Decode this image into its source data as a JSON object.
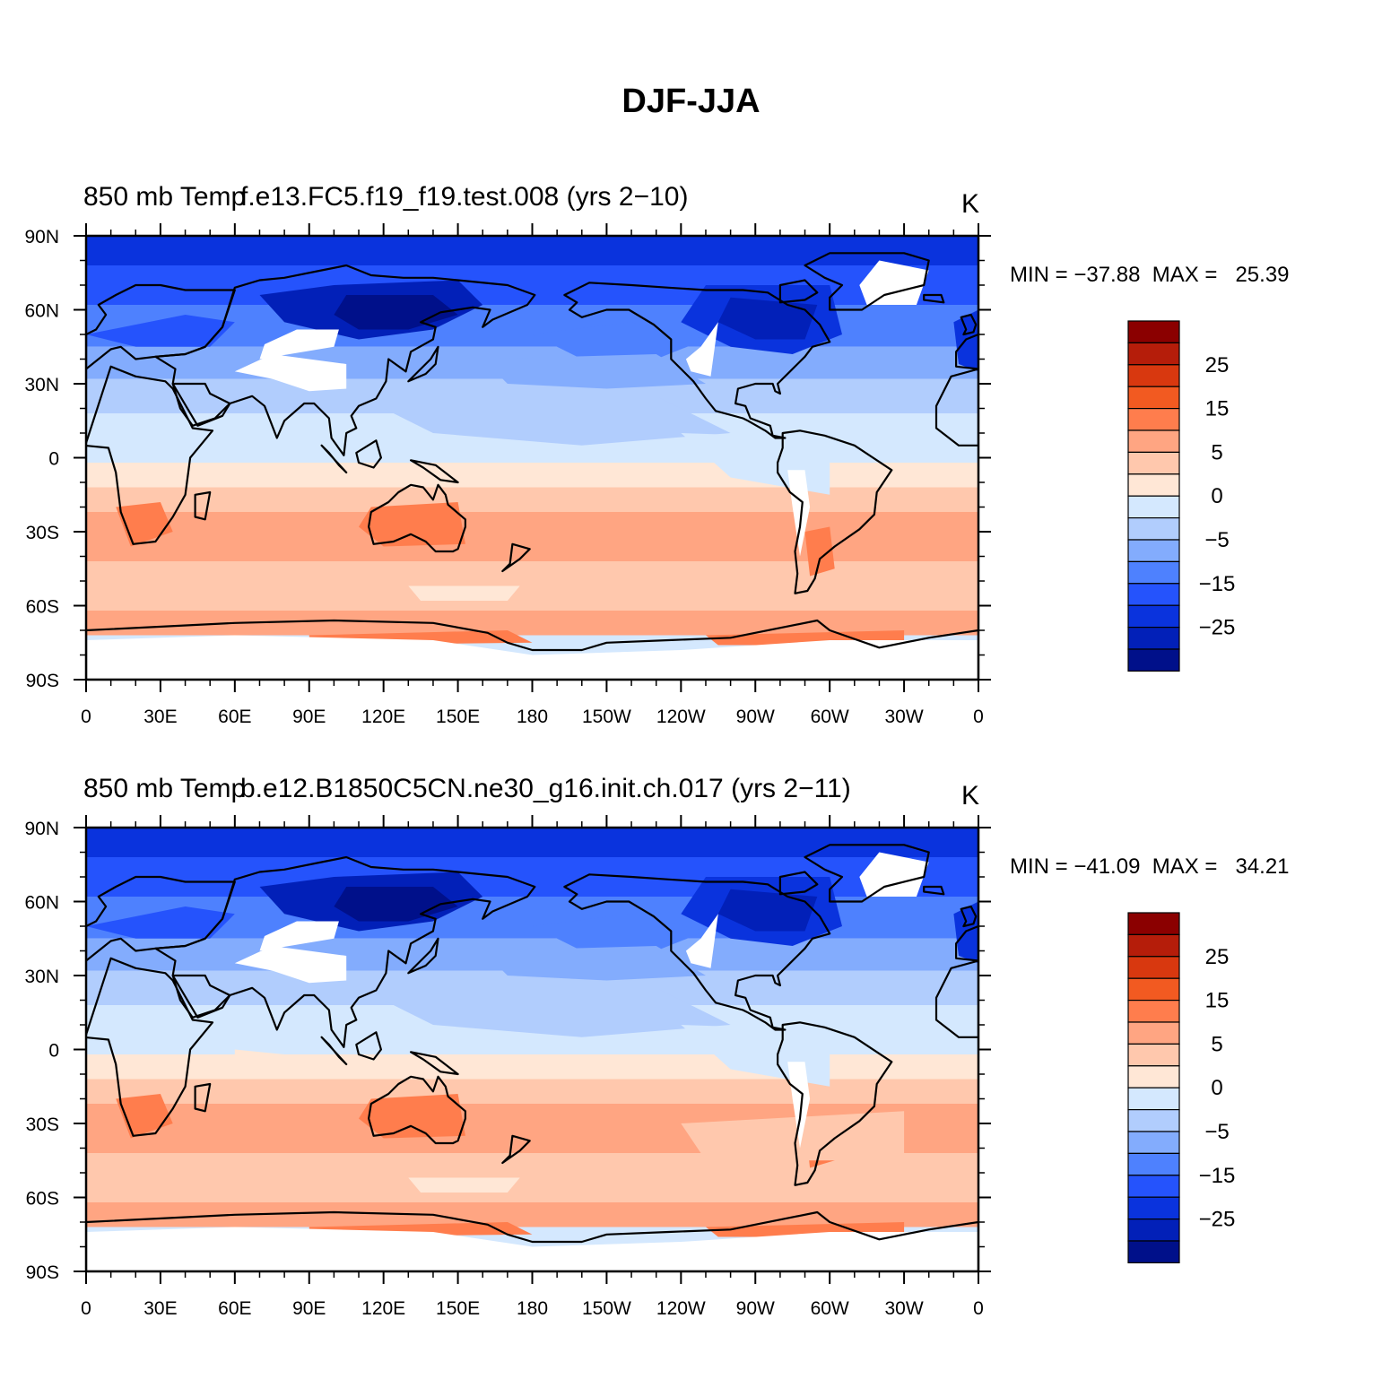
{
  "title": "DJF-JJA",
  "colors": {
    "levels_from_high_to_low": [
      "#8b0000",
      "#b51d0a",
      "#d8380f",
      "#f25a21",
      "#ff7d4d",
      "#ffa582",
      "#ffc8ad",
      "#ffe7d6",
      "#d4e8fe",
      "#b1cdfd",
      "#83acfd",
      "#4e81fe",
      "#2553fc",
      "#0a33dd",
      "#0220b8",
      "#00108a"
    ],
    "land_missing": "#ffffff",
    "coast": "#000000"
  },
  "axes": {
    "lat_ticks": [
      "90N",
      "60N",
      "30N",
      "0",
      "30S",
      "60S",
      "90S"
    ],
    "lon_ticks": [
      "0",
      "30E",
      "60E",
      "90E",
      "120E",
      "150E",
      "180",
      "150W",
      "120W",
      "90W",
      "60W",
      "30W",
      "0"
    ]
  },
  "colorbar_labels": [
    "25",
    "15",
    "5",
    "0",
    "−5",
    "−15",
    "−25"
  ],
  "panels": [
    {
      "id": "top",
      "left_label": "850 mb Temp",
      "center_label": "f.e13.FC5.f19_f19.test.008 (yrs 2−10)",
      "units": "K",
      "stats": "MIN = −37.88  MAX =   25.39"
    },
    {
      "id": "bottom",
      "left_label": "850 mb Temp",
      "center_label": "b.e12.B1850C5CN.ne30_g16.init.ch.017 (yrs 2−11)",
      "units": "K",
      "stats": "MIN = −41.09  MAX =   34.21"
    }
  ]
}
